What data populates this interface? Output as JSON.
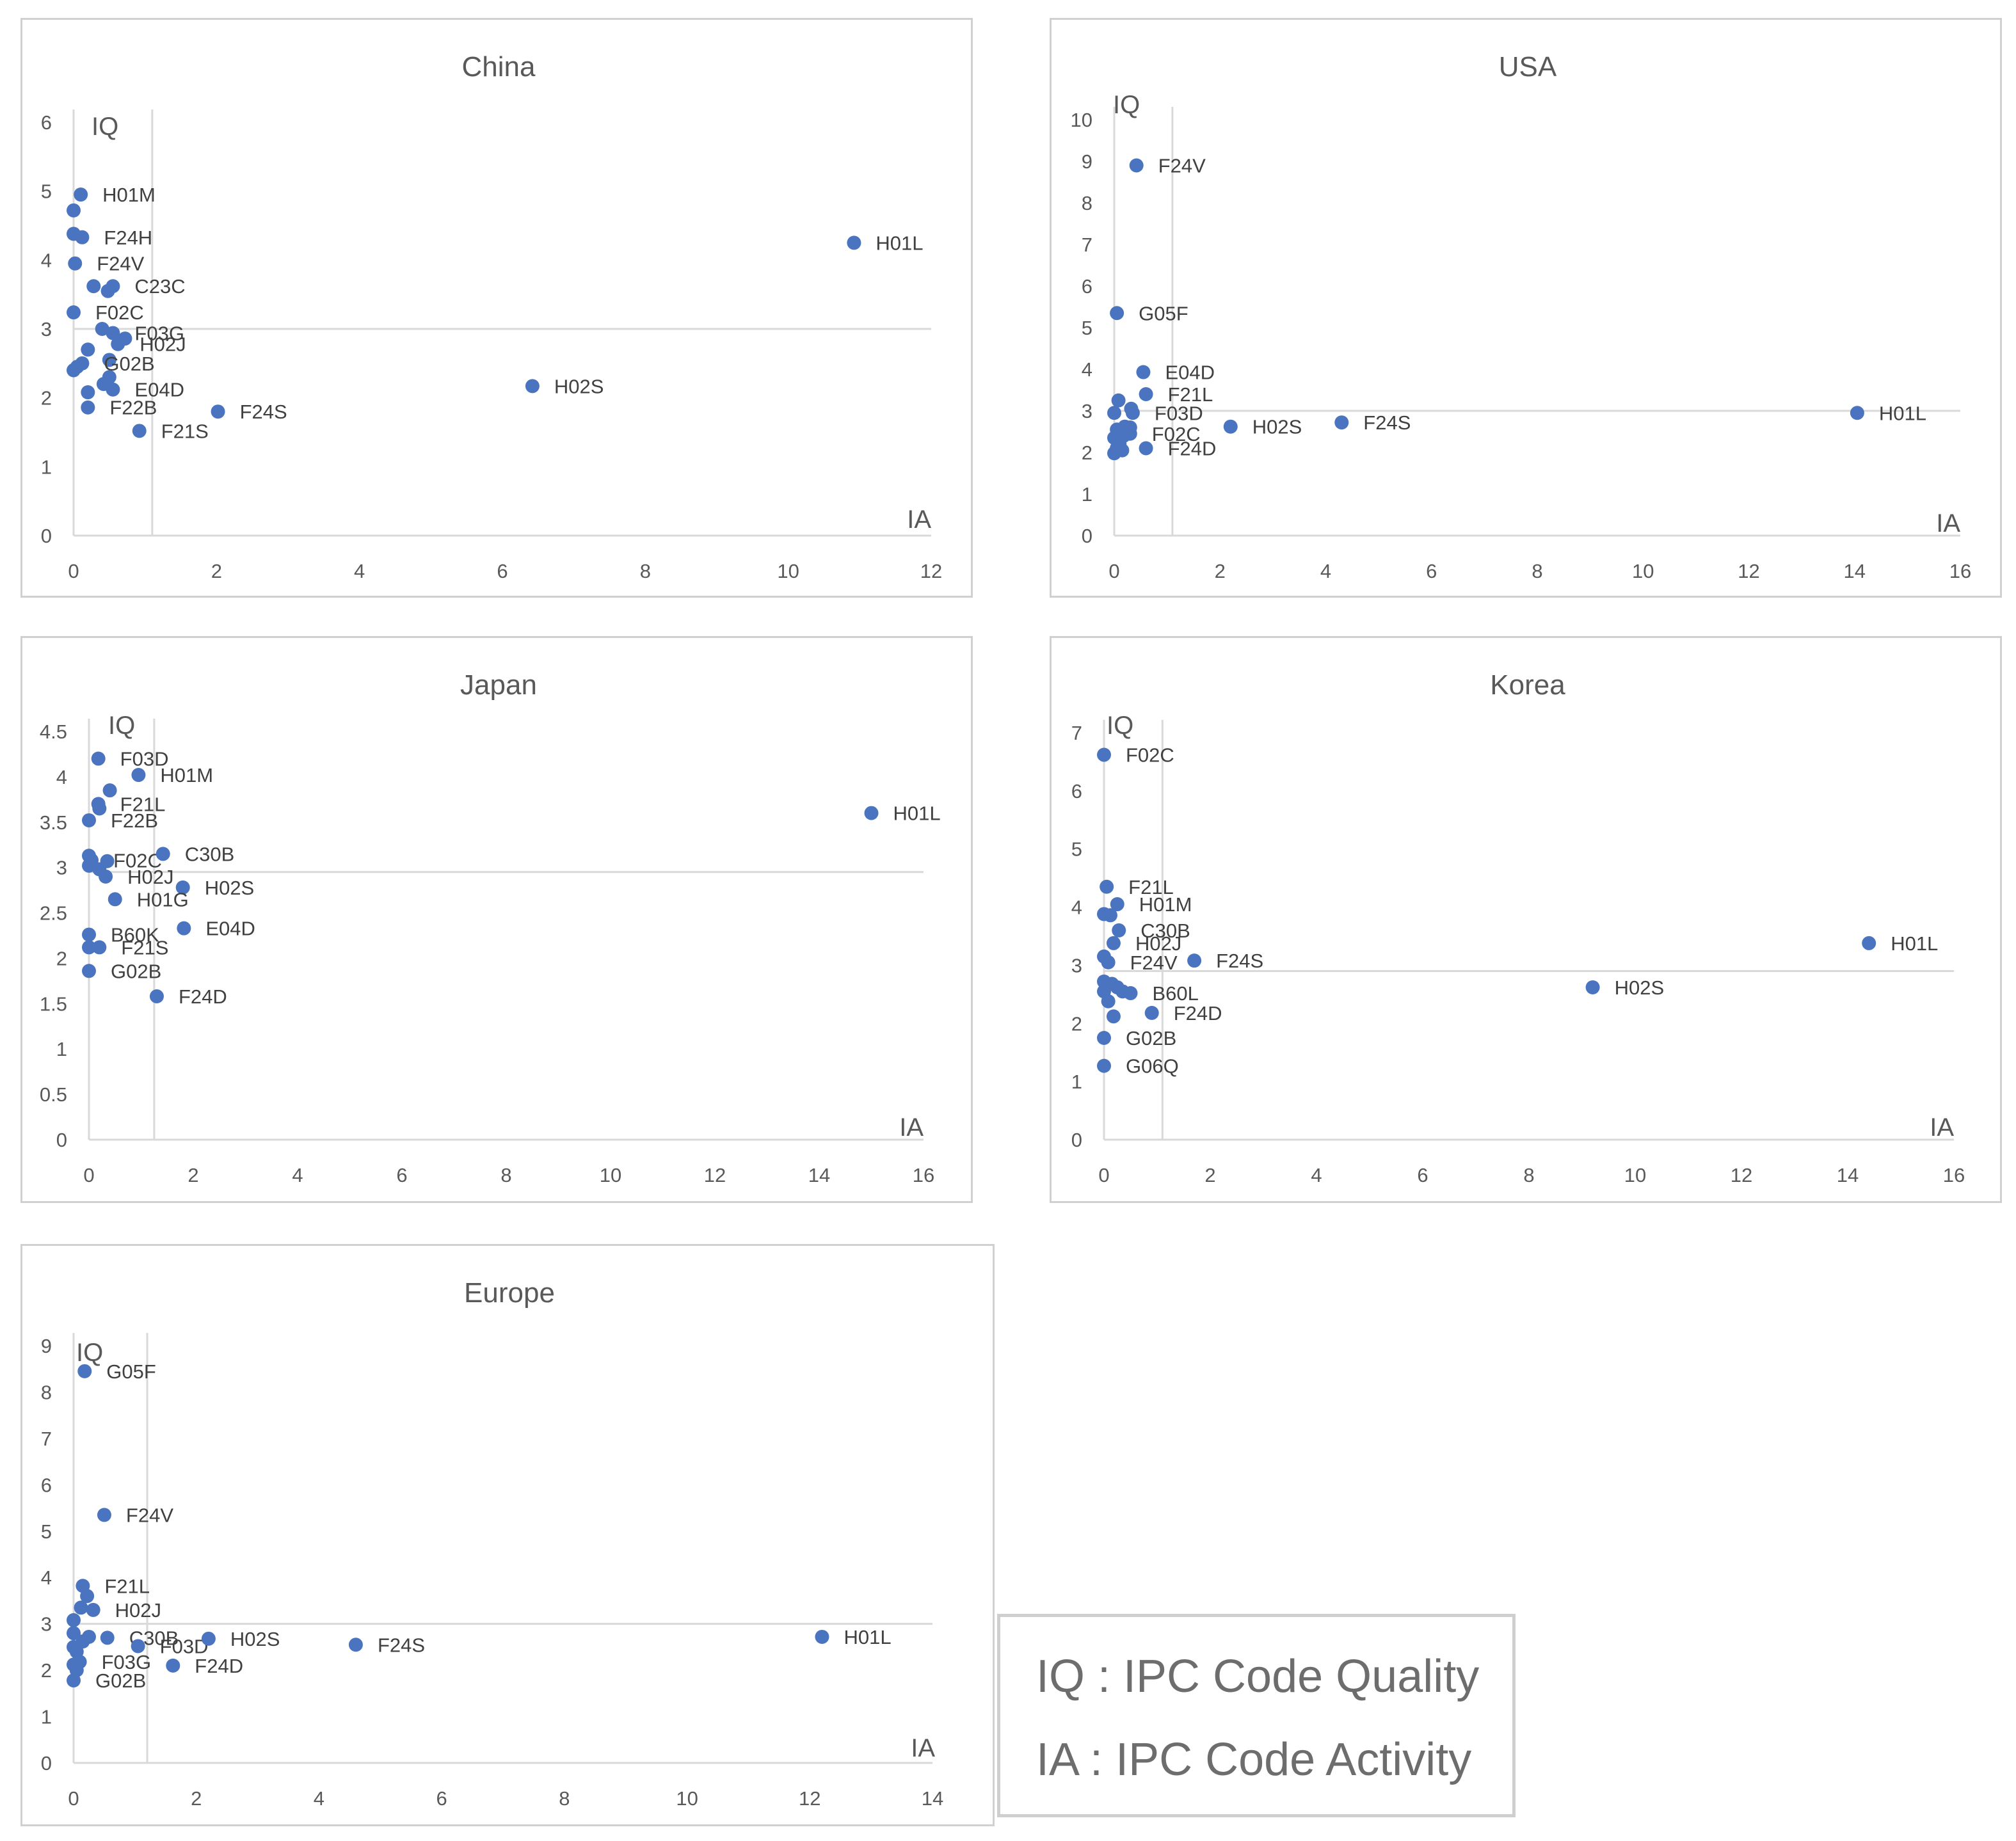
{
  "colors": {
    "marker": "#4a74c0",
    "axis_text": "#595959",
    "label_text": "#404040",
    "title_text": "#595959",
    "gridline": "#d9d9d9",
    "frame": "#d0d0d0"
  },
  "legend": {
    "iq": "IQ : IPC Code Quality",
    "ia": "IA : IPC Code Activity"
  },
  "chart_data": [
    {
      "type": "scatter",
      "title": "China",
      "xlabel": "IA",
      "ylabel": "IQ",
      "xlim": [
        0,
        12
      ],
      "ylim": [
        0,
        6
      ],
      "xticks": [
        "0",
        "2",
        "4",
        "6",
        "8",
        "10",
        "12"
      ],
      "yticks": [
        "0",
        "1",
        "2",
        "3",
        "4",
        "5",
        "6"
      ],
      "reference_lines": {
        "x": 1.1,
        "y": 3.0
      },
      "points": [
        {
          "x": 0.1,
          "y": 4.95,
          "label": "H01M"
        },
        {
          "x": 0.0,
          "y": 4.72
        },
        {
          "x": 0.0,
          "y": 4.38
        },
        {
          "x": 0.12,
          "y": 4.33,
          "label": "F24H"
        },
        {
          "x": 0.02,
          "y": 3.95,
          "label": "F24V"
        },
        {
          "x": 0.28,
          "y": 3.62
        },
        {
          "x": 0.55,
          "y": 3.62,
          "label": "C23C"
        },
        {
          "x": 0.48,
          "y": 3.55
        },
        {
          "x": 0.0,
          "y": 3.24,
          "label": "F02C"
        },
        {
          "x": 0.4,
          "y": 3.0
        },
        {
          "x": 0.55,
          "y": 2.94,
          "label": "F03G"
        },
        {
          "x": 0.72,
          "y": 2.86
        },
        {
          "x": 0.62,
          "y": 2.78,
          "label": "H02J"
        },
        {
          "x": 0.2,
          "y": 2.7
        },
        {
          "x": 0.5,
          "y": 2.55
        },
        {
          "x": 0.12,
          "y": 2.5,
          "label": "G02B"
        },
        {
          "x": 0.0,
          "y": 2.4
        },
        {
          "x": 0.05,
          "y": 2.45
        },
        {
          "x": 0.5,
          "y": 2.3
        },
        {
          "x": 0.42,
          "y": 2.2
        },
        {
          "x": 0.55,
          "y": 2.12,
          "label": "E04D"
        },
        {
          "x": 0.2,
          "y": 2.08
        },
        {
          "x": 0.2,
          "y": 1.86,
          "label": "F22B"
        },
        {
          "x": 0.92,
          "y": 1.52,
          "label": "F21S"
        },
        {
          "x": 2.02,
          "y": 1.8,
          "label": "F24S"
        },
        {
          "x": 6.42,
          "y": 2.17,
          "label": "H02S"
        },
        {
          "x": 10.92,
          "y": 4.25,
          "label": "H01L"
        }
      ]
    },
    {
      "type": "scatter",
      "title": "USA",
      "xlabel": "IA",
      "ylabel": "IQ",
      "xlim": [
        0,
        16
      ],
      "ylim": [
        0,
        10
      ],
      "xticks": [
        "0",
        "2",
        "4",
        "6",
        "8",
        "10",
        "12",
        "14",
        "16"
      ],
      "yticks": [
        "0",
        "1",
        "2",
        "3",
        "4",
        "5",
        "6",
        "7",
        "8",
        "9",
        "10"
      ],
      "reference_lines": {
        "x": 1.1,
        "y": 3.0
      },
      "points": [
        {
          "x": 0.42,
          "y": 8.9,
          "label": "F24V"
        },
        {
          "x": 0.05,
          "y": 5.35,
          "label": "G05F"
        },
        {
          "x": 0.55,
          "y": 3.93,
          "label": "E04D"
        },
        {
          "x": 0.6,
          "y": 3.4,
          "label": "F21L"
        },
        {
          "x": 0.08,
          "y": 3.25
        },
        {
          "x": 0.0,
          "y": 2.95
        },
        {
          "x": 0.32,
          "y": 3.05
        },
        {
          "x": 0.35,
          "y": 2.95,
          "label": "F03D"
        },
        {
          "x": 0.2,
          "y": 2.62
        },
        {
          "x": 0.05,
          "y": 2.55
        },
        {
          "x": 0.3,
          "y": 2.6
        },
        {
          "x": 0.0,
          "y": 2.35
        },
        {
          "x": 0.18,
          "y": 2.4
        },
        {
          "x": 0.3,
          "y": 2.45,
          "label": "F02C"
        },
        {
          "x": 0.1,
          "y": 2.2
        },
        {
          "x": 0.05,
          "y": 2.1
        },
        {
          "x": 0.15,
          "y": 2.05
        },
        {
          "x": 0.0,
          "y": 1.98
        },
        {
          "x": 0.6,
          "y": 2.1,
          "label": "F24D"
        },
        {
          "x": 2.2,
          "y": 2.62,
          "label": "H02S"
        },
        {
          "x": 4.3,
          "y": 2.72,
          "label": "F24S"
        },
        {
          "x": 14.05,
          "y": 2.95,
          "label": "H01L"
        }
      ]
    },
    {
      "type": "scatter",
      "title": "Japan",
      "xlabel": "IA",
      "ylabel": "IQ",
      "xlim": [
        0,
        16
      ],
      "ylim": [
        0,
        4.5
      ],
      "xticks": [
        "0",
        "2",
        "4",
        "6",
        "8",
        "10",
        "12",
        "14",
        "16"
      ],
      "yticks": [
        "0",
        "0.5",
        "1",
        "1.5",
        "2",
        "2.5",
        "3",
        "3.5",
        "4",
        "4.5"
      ],
      "reference_lines": {
        "x": 1.25,
        "y": 2.95
      },
      "points": [
        {
          "x": 0.18,
          "y": 4.2,
          "label": "F03D"
        },
        {
          "x": 0.95,
          "y": 4.02,
          "label": "H01M"
        },
        {
          "x": 0.4,
          "y": 3.85
        },
        {
          "x": 0.18,
          "y": 3.7,
          "label": "F21L"
        },
        {
          "x": 0.2,
          "y": 3.65
        },
        {
          "x": 0.0,
          "y": 3.52,
          "label": "F22B"
        },
        {
          "x": 0.0,
          "y": 3.13
        },
        {
          "x": 0.05,
          "y": 3.08,
          "label": "F02C"
        },
        {
          "x": 0.35,
          "y": 3.07
        },
        {
          "x": 0.0,
          "y": 3.02
        },
        {
          "x": 0.2,
          "y": 2.98
        },
        {
          "x": 0.32,
          "y": 2.9,
          "label": "H02J"
        },
        {
          "x": 1.42,
          "y": 3.15,
          "label": "C30B"
        },
        {
          "x": 1.8,
          "y": 2.78,
          "label": "H02S"
        },
        {
          "x": 0.5,
          "y": 2.65,
          "label": "H01G"
        },
        {
          "x": 1.82,
          "y": 2.33,
          "label": "E04D"
        },
        {
          "x": 0.0,
          "y": 2.26,
          "label": "B60K"
        },
        {
          "x": 0.0,
          "y": 2.12
        },
        {
          "x": 0.2,
          "y": 2.12,
          "label": "F21S"
        },
        {
          "x": 0.0,
          "y": 1.86,
          "label": "G02B"
        },
        {
          "x": 1.3,
          "y": 1.58,
          "label": "F24D"
        },
        {
          "x": 15.0,
          "y": 3.6,
          "label": "H01L"
        }
      ]
    },
    {
      "type": "scatter",
      "title": "Korea",
      "xlabel": "IA",
      "ylabel": "IQ",
      "xlim": [
        0,
        16
      ],
      "ylim": [
        0,
        7
      ],
      "xticks": [
        "0",
        "2",
        "4",
        "6",
        "8",
        "10",
        "12",
        "14",
        "16"
      ],
      "yticks": [
        "0",
        "1",
        "2",
        "3",
        "4",
        "5",
        "6",
        "7"
      ],
      "reference_lines": {
        "x": 1.1,
        "y": 2.9
      },
      "points": [
        {
          "x": 0.0,
          "y": 6.62,
          "label": "F02C"
        },
        {
          "x": 0.05,
          "y": 4.35,
          "label": "F21L"
        },
        {
          "x": 0.25,
          "y": 4.05,
          "label": "H01M"
        },
        {
          "x": 0.0,
          "y": 3.88
        },
        {
          "x": 0.12,
          "y": 3.86
        },
        {
          "x": 0.28,
          "y": 3.6,
          "label": "C30B"
        },
        {
          "x": 0.18,
          "y": 3.38,
          "label": "H02J"
        },
        {
          "x": 0.0,
          "y": 3.15
        },
        {
          "x": 0.08,
          "y": 3.05,
          "label": "F24V"
        },
        {
          "x": 1.7,
          "y": 3.08,
          "label": "F24S"
        },
        {
          "x": 0.0,
          "y": 2.72
        },
        {
          "x": 0.15,
          "y": 2.68
        },
        {
          "x": 0.25,
          "y": 2.62
        },
        {
          "x": 0.0,
          "y": 2.55
        },
        {
          "x": 0.35,
          "y": 2.55
        },
        {
          "x": 0.5,
          "y": 2.52,
          "label": "B60L"
        },
        {
          "x": 0.08,
          "y": 2.38
        },
        {
          "x": 0.18,
          "y": 2.12
        },
        {
          "x": 0.9,
          "y": 2.18,
          "label": "F24D"
        },
        {
          "x": 0.0,
          "y": 1.75,
          "label": "G02B"
        },
        {
          "x": 0.0,
          "y": 1.27,
          "label": "G06Q"
        },
        {
          "x": 9.2,
          "y": 2.62,
          "label": "H02S"
        },
        {
          "x": 14.4,
          "y": 3.38,
          "label": "H01L"
        }
      ]
    },
    {
      "type": "scatter",
      "title": "Europe",
      "xlabel": "IA",
      "ylabel": "IQ",
      "xlim": [
        0,
        14
      ],
      "ylim": [
        0,
        9
      ],
      "xticks": [
        "0",
        "2",
        "4",
        "6",
        "8",
        "10",
        "12",
        "14"
      ],
      "yticks": [
        "0",
        "1",
        "2",
        "3",
        "4",
        "5",
        "6",
        "7",
        "8",
        "9"
      ],
      "reference_lines": {
        "x": 1.2,
        "y": 3.0
      },
      "points": [
        {
          "x": 0.18,
          "y": 8.45,
          "label": "G05F"
        },
        {
          "x": 0.5,
          "y": 5.35,
          "label": "F24V"
        },
        {
          "x": 0.15,
          "y": 3.82,
          "label": "F21L"
        },
        {
          "x": 0.22,
          "y": 3.6
        },
        {
          "x": 0.12,
          "y": 3.35
        },
        {
          "x": 0.32,
          "y": 3.3,
          "label": "H02J"
        },
        {
          "x": 0.0,
          "y": 3.08
        },
        {
          "x": 0.0,
          "y": 2.8
        },
        {
          "x": 0.25,
          "y": 2.72
        },
        {
          "x": 0.55,
          "y": 2.7,
          "label": "C30B"
        },
        {
          "x": 0.15,
          "y": 2.62
        },
        {
          "x": 0.0,
          "y": 2.5
        },
        {
          "x": 0.05,
          "y": 2.4
        },
        {
          "x": 1.05,
          "y": 2.52,
          "label": "F03D"
        },
        {
          "x": 0.0,
          "y": 2.12
        },
        {
          "x": 0.1,
          "y": 2.18,
          "label": "F03G"
        },
        {
          "x": 0.05,
          "y": 2.0
        },
        {
          "x": 0.0,
          "y": 1.78,
          "label": "G02B"
        },
        {
          "x": 1.62,
          "y": 2.1,
          "label": "F24D"
        },
        {
          "x": 2.2,
          "y": 2.68,
          "label": "H02S"
        },
        {
          "x": 4.6,
          "y": 2.55,
          "label": "F24S"
        },
        {
          "x": 12.2,
          "y": 2.72,
          "label": "H01L"
        }
      ]
    }
  ]
}
